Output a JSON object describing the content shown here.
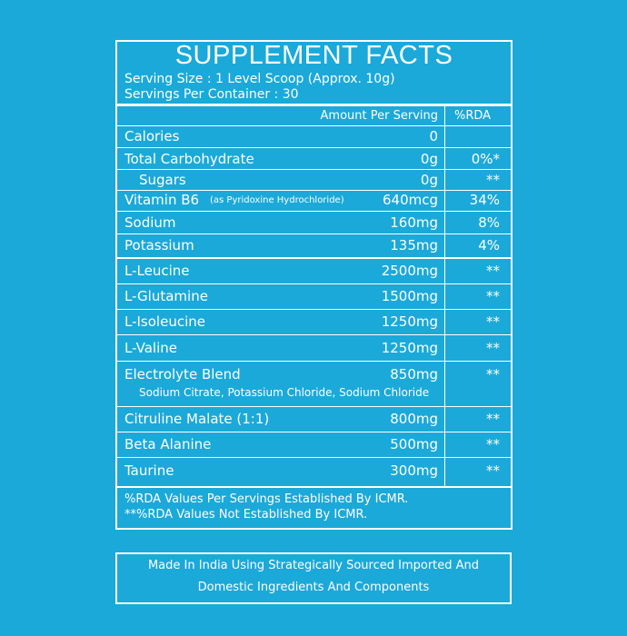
{
  "title": "SUPPLEMENT FACTS",
  "serving_size": "Serving Size : 1 Level Scoop (Approx. 10g)",
  "servings_per_container": "Servings Per Container : 30",
  "header": {
    "amount": "Amount Per Serving",
    "rda": "%RDA"
  },
  "rows": [
    {
      "name": "Calories",
      "amount": "0"
    },
    {
      "name": "Total Carbohydrate",
      "amount": "0g",
      "rda": "0%*"
    },
    {
      "name": "Sugars",
      "amount": "0g",
      "rda": "**"
    },
    {
      "name": "Vitamin B6",
      "note": "(as Pyridoxine Hydrochloride)",
      "amount": "640mcg",
      "rda": "34%"
    },
    {
      "name": "Sodium",
      "amount": "160mg",
      "rda": "8%"
    },
    {
      "name": "Potassium",
      "amount": "135mg",
      "rda": "4%"
    },
    {
      "name": "L-Leucine",
      "amount": "2500mg",
      "rda": "**"
    },
    {
      "name": "L-Glutamine",
      "amount": "1500mg",
      "rda": "**"
    },
    {
      "name": "L-Isoleucine",
      "amount": "1250mg",
      "rda": "**"
    },
    {
      "name": "L-Valine",
      "amount": "1250mg",
      "rda": "**"
    },
    {
      "name": "Electrolyte Blend",
      "amount": "850mg",
      "rda": "**",
      "sub": "Sodium Citrate, Potassium Chloride, Sodium Chloride"
    },
    {
      "name": "Citruline Malate (1:1)",
      "amount": "800mg",
      "rda": "**"
    },
    {
      "name": "Beta Alanine",
      "amount": "500mg",
      "rda": "**"
    },
    {
      "name": "Taurine",
      "amount": "300mg",
      "rda": "**"
    }
  ],
  "footnotes": [
    "%RDA  Values Per Servings Established By ICMR.",
    "**%RDA  Values Not Established By ICMR."
  ],
  "origin": [
    "Made In India Using Strategically Sourced Imported And",
    "Domestic Ingredients And Components"
  ]
}
